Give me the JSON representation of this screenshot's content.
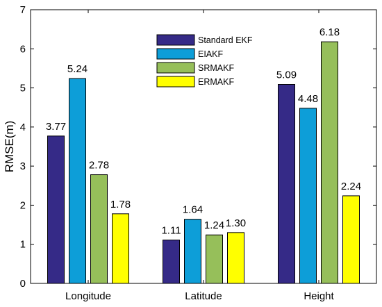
{
  "chart_data": {
    "type": "bar",
    "categories": [
      "Longitude",
      "Latitude",
      "Height"
    ],
    "series": [
      {
        "name": "Standard EKF",
        "values": [
          3.77,
          1.11,
          5.09
        ],
        "color": "#352a87"
      },
      {
        "name": "EIAKF",
        "values": [
          5.24,
          1.64,
          4.48
        ],
        "color": "#0d9ed8"
      },
      {
        "name": "SRMAKF",
        "values": [
          2.78,
          1.24,
          6.18
        ],
        "color": "#96bf5a"
      },
      {
        "name": "ERMAKF",
        "values": [
          1.78,
          1.3,
          2.24
        ],
        "color": "#ffff00"
      }
    ],
    "data_labels": [
      [
        "3.77",
        "1.11",
        "5.09"
      ],
      [
        "5.24",
        "1.64",
        "4.48"
      ],
      [
        "2.78",
        "1.24",
        "6.18"
      ],
      [
        "1.78",
        "1.30",
        "2.24"
      ]
    ],
    "ylabel": "RMSE(m)",
    "xlabel": "",
    "ylim": [
      0,
      7
    ],
    "yticks": [
      0,
      1,
      2,
      3,
      4,
      5,
      6,
      7
    ],
    "grid": false,
    "legend_position": "top-center"
  }
}
